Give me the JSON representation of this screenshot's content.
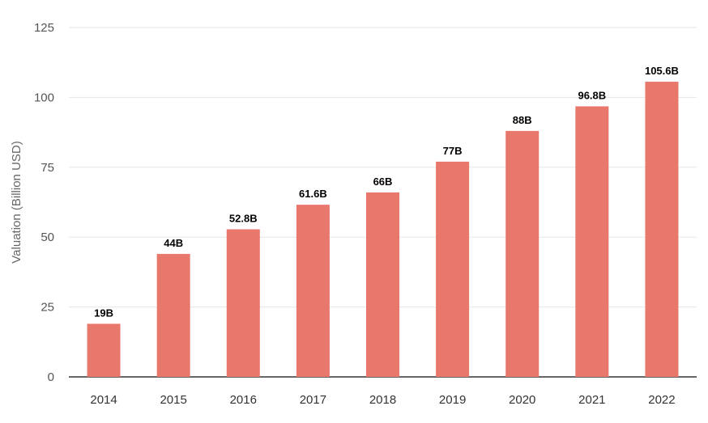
{
  "chart_data": {
    "type": "bar",
    "title": "",
    "xlabel": "",
    "ylabel": "Valuation (Billion USD)",
    "ylim": [
      0,
      125
    ],
    "yticks": [
      0,
      25,
      50,
      75,
      100,
      125
    ],
    "grid": true,
    "bar_color": "#e8776c",
    "categories": [
      "2014",
      "2015",
      "2016",
      "2017",
      "2018",
      "2019",
      "2020",
      "2021",
      "2022"
    ],
    "values": [
      19,
      44,
      52.8,
      61.6,
      66,
      77,
      88,
      96.8,
      105.6
    ],
    "data_labels": [
      "19B",
      "44B",
      "52.8B",
      "61.6B",
      "66B",
      "77B",
      "88B",
      "96.8B",
      "105.6B"
    ]
  }
}
